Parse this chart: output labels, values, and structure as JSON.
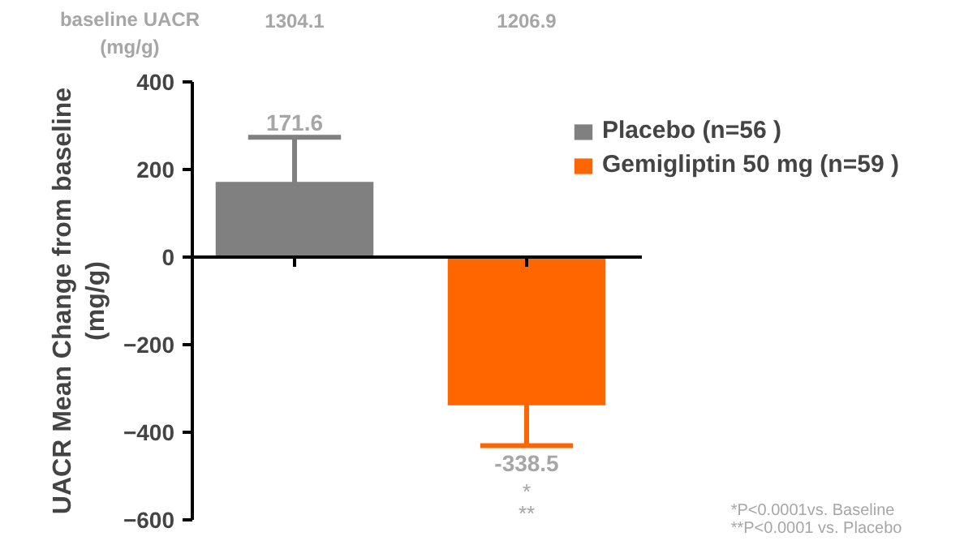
{
  "chart_data": {
    "type": "bar",
    "categories": [
      null,
      null
    ],
    "series": [
      {
        "name": "Placebo (n=56 )",
        "color": "#808080",
        "values": [
          171.6,
          null
        ],
        "errors": [
          102,
          null
        ],
        "value_labels": [
          "171.6",
          null
        ]
      },
      {
        "name": "Gemigliptin 50 mg (n=59 )",
        "color": "#ff6600",
        "values": [
          null,
          -338.5
        ],
        "errors": [
          null,
          92
        ],
        "value_labels": [
          null,
          "-338.5"
        ]
      }
    ],
    "ylabel": "UACR Mean Change from baseline\n(mg/g)",
    "ylim": [
      -600,
      400
    ],
    "yticks": [
      -600,
      -400,
      -200,
      0,
      200,
      400
    ],
    "tick_labels": "y",
    "legend": "right",
    "annotations": [
      "baseline UACR\n(mg/g)",
      "1304.1",
      "1206.9",
      "*",
      "**",
      "*P<0.0001vs. Baseline",
      "**P<0.0001 vs. Placebo"
    ]
  }
}
